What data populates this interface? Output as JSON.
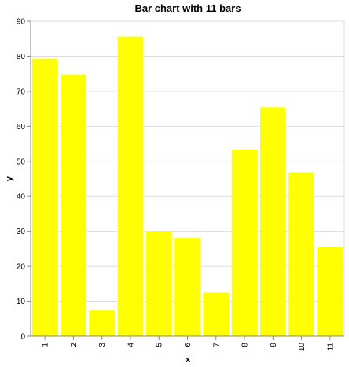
{
  "chart_data": {
    "type": "bar",
    "title": "Bar chart with 11 bars",
    "xlabel": "x",
    "ylabel": "y",
    "categories": [
      "1",
      "2",
      "3",
      "4",
      "5",
      "6",
      "7",
      "8",
      "9",
      "10",
      "11"
    ],
    "values": [
      79.3,
      74.8,
      7.4,
      85.6,
      29.9,
      28.1,
      12.5,
      53.3,
      65.4,
      46.7,
      25.6
    ],
    "ylim": [
      0,
      90
    ],
    "yticks": [
      0,
      10,
      20,
      30,
      40,
      50,
      60,
      70,
      80,
      90
    ],
    "grid": true,
    "legend": "none",
    "colors": {
      "bar": "#ffff00",
      "grid": "#dddddd",
      "axis": "#888888"
    }
  }
}
